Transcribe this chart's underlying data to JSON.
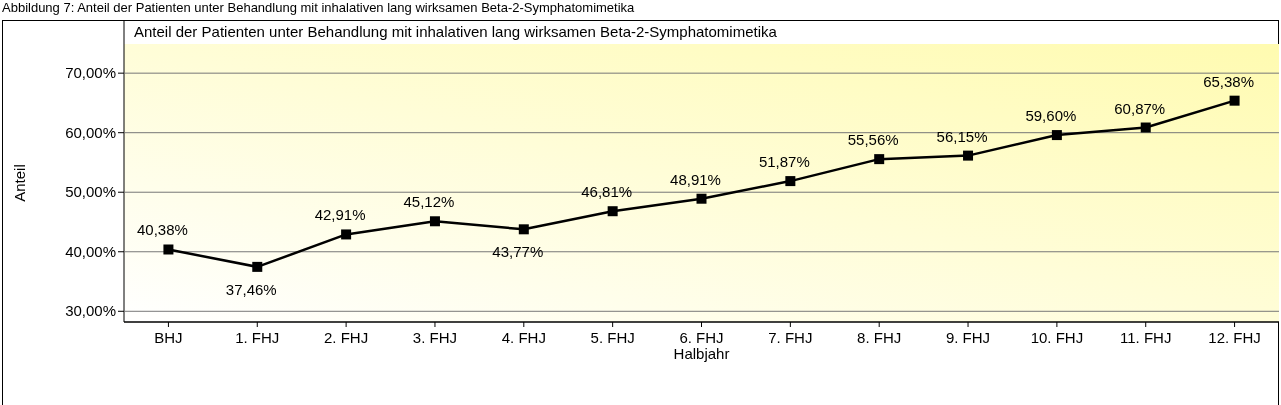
{
  "chart_data": {
    "type": "line",
    "title": "Abbildung 7: Anteil der Patienten unter Behandlung mit inhalativen lang wirksamen Beta-2-Symphatomimetika",
    "subtitle": "Anteil der Patienten unter Behandlung mit inhalativen lang wirksamen Beta-2-Symphatomimetika",
    "xlabel": "Halbjahr",
    "ylabel": "Anteil",
    "categories": [
      "BHJ",
      "1. FHJ",
      "2. FHJ",
      "3. FHJ",
      "4. FHJ",
      "5. FHJ",
      "6. FHJ",
      "7. FHJ",
      "8. FHJ",
      "9. FHJ",
      "10. FHJ",
      "11. FHJ",
      "12. FHJ"
    ],
    "series": [
      {
        "color": "#000000",
        "values": [
          40.38,
          37.46,
          42.91,
          45.12,
          43.77,
          46.81,
          48.91,
          51.87,
          55.56,
          56.15,
          59.6,
          60.87,
          65.38
        ],
        "value_labels": [
          "40,38%",
          "37,46%",
          "42,91%",
          "45,12%",
          "43,77%",
          "46,81%",
          "48,91%",
          "51,87%",
          "55,56%",
          "56,15%",
          "59,60%",
          "60,87%",
          "65,38%"
        ]
      }
    ],
    "ylim": [
      28.2,
      74.9
    ],
    "yticks": [
      {
        "value": 30,
        "label": "30,00%"
      },
      {
        "value": 40,
        "label": "40,00%"
      },
      {
        "value": 50,
        "label": "50,00%"
      },
      {
        "value": 60,
        "label": "60,00%"
      },
      {
        "value": 70,
        "label": "70,00%"
      }
    ],
    "grid": "y",
    "marker": "square",
    "line_style": "solid"
  }
}
